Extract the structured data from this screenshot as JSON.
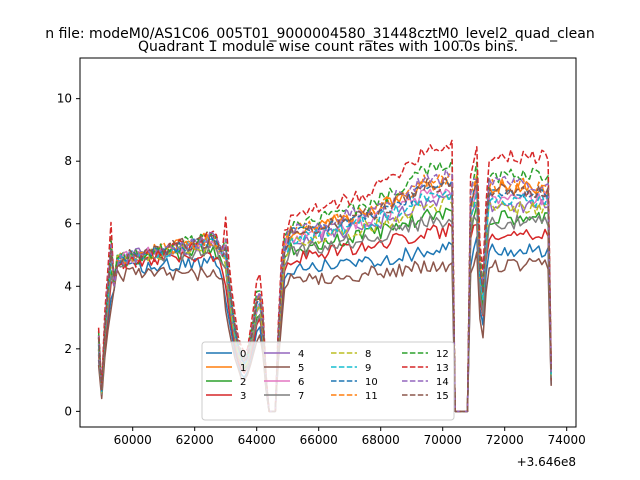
{
  "chart_data": {
    "type": "line",
    "suptitle": "n file: modeM0/AS1C06_005T01_9000004580_31448cztM0_level2_quad_clean",
    "title": "Quadrant 1 module wise count rates with 100.0s bins.",
    "xlabel": "",
    "ylabel": "",
    "x_offset_label": "+3.646e8",
    "xlim": [
      58300,
      74300
    ],
    "ylim": [
      -0.5,
      11.3
    ],
    "x_ticks": [
      60000,
      62000,
      64000,
      66000,
      68000,
      70000,
      72000,
      74000
    ],
    "x_tick_labels": [
      "60000",
      "62000",
      "64000",
      "66000",
      "68000",
      "70000",
      "72000",
      "74000"
    ],
    "y_ticks": [
      0,
      2,
      4,
      6,
      8,
      10
    ],
    "y_tick_labels": [
      "0",
      "2",
      "4",
      "6",
      "8",
      "10"
    ],
    "x_start": 58900,
    "x_step": 100,
    "x_count": 147,
    "profile": {
      "levels": [
        [
          58900,
          0.28
        ],
        [
          59000,
          0.08
        ],
        [
          59100,
          0.32
        ],
        [
          59300,
          0.62
        ],
        [
          59500,
          0.85
        ],
        [
          62600,
          0.85
        ],
        [
          62900,
          0.78
        ],
        [
          63050,
          0.55
        ],
        [
          63250,
          0.35
        ],
        [
          63450,
          0.22
        ],
        [
          63650,
          0.18
        ],
        [
          63850,
          0.3
        ],
        [
          64000,
          0.42
        ],
        [
          64150,
          0.45
        ],
        [
          64250,
          0.25
        ],
        [
          64350,
          0.0
        ],
        [
          64600,
          0.0
        ],
        [
          64700,
          0.3
        ],
        [
          64900,
          0.74
        ],
        [
          65100,
          0.8
        ],
        [
          70300,
          0.88
        ],
        [
          70350,
          0.0
        ],
        [
          70800,
          0.0
        ],
        [
          70850,
          0.8
        ],
        [
          71000,
          0.88
        ],
        [
          71100,
          0.92
        ],
        [
          71200,
          0.55
        ],
        [
          71300,
          0.46
        ],
        [
          71450,
          0.88
        ],
        [
          73400,
          0.88
        ],
        [
          73500,
          0.15
        ]
      ],
      "rise_mid": [
        [
          58900,
          0.5
        ],
        [
          65100,
          0.78
        ],
        [
          67800,
          0.86
        ],
        [
          69500,
          1.0
        ],
        [
          70300,
          1.0
        ],
        [
          71000,
          0.95
        ],
        [
          73500,
          0.95
        ]
      ]
    },
    "series": [
      {
        "name": "0",
        "color": "#1f77b4",
        "dash": "solid",
        "level": 5.9
      },
      {
        "name": "1",
        "color": "#ff7f0e",
        "dash": "solid",
        "level": 8.4
      },
      {
        "name": "2",
        "color": "#2ca02c",
        "dash": "solid",
        "level": 7.2
      },
      {
        "name": "3",
        "color": "#d62728",
        "dash": "solid",
        "level": 6.6
      },
      {
        "name": "4",
        "color": "#9467bd",
        "dash": "solid",
        "level": 7.7
      },
      {
        "name": "5",
        "color": "#8c564b",
        "dash": "solid",
        "level": 5.3
      },
      {
        "name": "6",
        "color": "#e377c2",
        "dash": "solid",
        "level": 8.0
      },
      {
        "name": "7",
        "color": "#7f7f7f",
        "dash": "solid",
        "level": 7.0
      },
      {
        "name": "8",
        "color": "#bcbd22",
        "dash": "dashed",
        "level": 7.6
      },
      {
        "name": "9",
        "color": "#17becf",
        "dash": "dashed",
        "level": 7.9
      },
      {
        "name": "10",
        "color": "#1f77b4",
        "dash": "dashed",
        "level": 8.2
      },
      {
        "name": "11",
        "color": "#ff7f0e",
        "dash": "dashed",
        "level": 8.5
      },
      {
        "name": "12",
        "color": "#2ca02c",
        "dash": "dashed",
        "level": 8.9
      },
      {
        "name": "13",
        "color": "#d62728",
        "dash": "dashed",
        "level": 9.7
      },
      {
        "name": "14",
        "color": "#9467bd",
        "dash": "dashed",
        "level": 8.6
      },
      {
        "name": "15",
        "color": "#8c564b",
        "dash": "dashed",
        "level": 8.3
      }
    ],
    "legend": {
      "position": "bottom-center",
      "columns": 4
    }
  }
}
